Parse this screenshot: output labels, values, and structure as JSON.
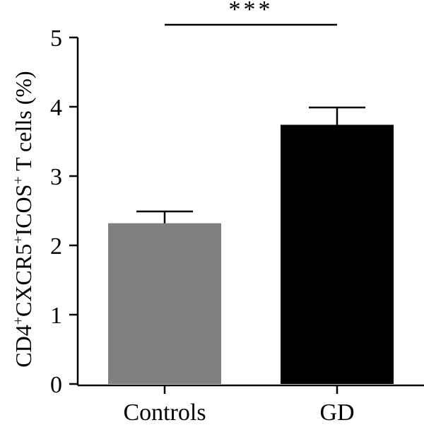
{
  "chart_data": {
    "type": "bar",
    "categories": [
      "Controls",
      "GD"
    ],
    "values": [
      2.32,
      3.74
    ],
    "errors": [
      0.17,
      0.25
    ],
    "colors": [
      "#808080",
      "#000000"
    ],
    "ylabel_parts": [
      {
        "t": "CD4",
        "sup": false
      },
      {
        "t": "+",
        "sup": true
      },
      {
        "t": "CXCR5",
        "sup": false
      },
      {
        "t": "+",
        "sup": true
      },
      {
        "t": "ICOS",
        "sup": false
      },
      {
        "t": "+",
        "sup": true
      },
      {
        "t": " T cells (%)",
        "sup": false
      }
    ],
    "ylim": [
      0,
      5
    ],
    "yticks": [
      "0",
      "1",
      "2",
      "3",
      "4",
      "5"
    ],
    "significance": {
      "from": "Controls",
      "to": "GD",
      "label": "***"
    },
    "grid": false
  }
}
